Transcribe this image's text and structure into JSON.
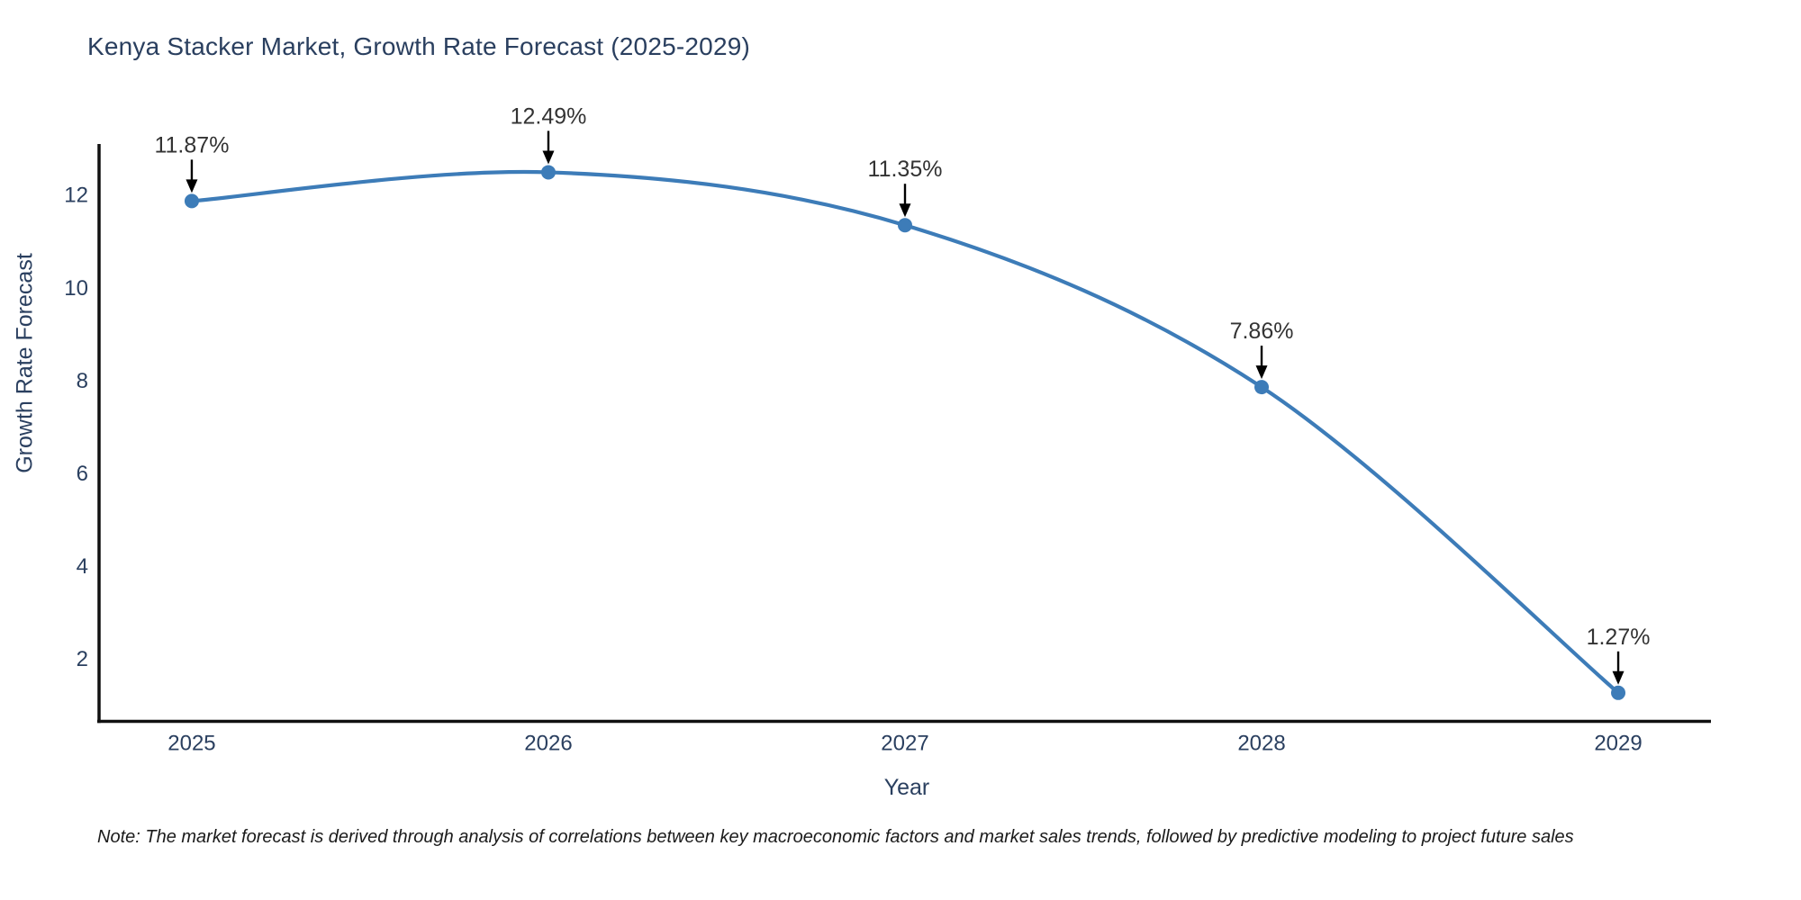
{
  "figure": {
    "title": "Kenya Stacker Market, Growth Rate Forecast (2025-2029)",
    "footnote": "Note: The market forecast is derived through analysis of correlations between key macroeconomic factors and market sales trends, followed by predictive modeling to project future sales"
  },
  "chart_data": {
    "type": "line",
    "title": "Kenya Stacker Market, Growth Rate Forecast (2025-2029)",
    "xlabel": "Year",
    "ylabel": "Growth Rate Forecast",
    "x": [
      2025,
      2026,
      2027,
      2028,
      2029
    ],
    "series": [
      {
        "name": "Growth Rate Forecast",
        "values": [
          11.87,
          12.49,
          11.35,
          7.86,
          1.27
        ]
      }
    ],
    "point_labels": [
      "11.87%",
      "12.49%",
      "11.35%",
      "7.86%",
      "1.27%"
    ],
    "xticks": [
      2025,
      2026,
      2027,
      2028,
      2029
    ],
    "yticks": [
      2,
      4,
      6,
      8,
      10,
      12
    ],
    "xlim": [
      2024.74,
      2029.26
    ],
    "ylim": [
      0.655,
      13.1
    ],
    "grid": false,
    "legend": "none",
    "line_shape": "spline",
    "annotation_style": "value label with downward arrow above each data point",
    "colors": {
      "line": "#3d7cb8",
      "marker": "#3d7cb8",
      "axis": "#111111",
      "tick_text": "#2a3f5f",
      "annotation_text": "#333333",
      "arrow": "#000000",
      "background": "#ffffff"
    }
  }
}
